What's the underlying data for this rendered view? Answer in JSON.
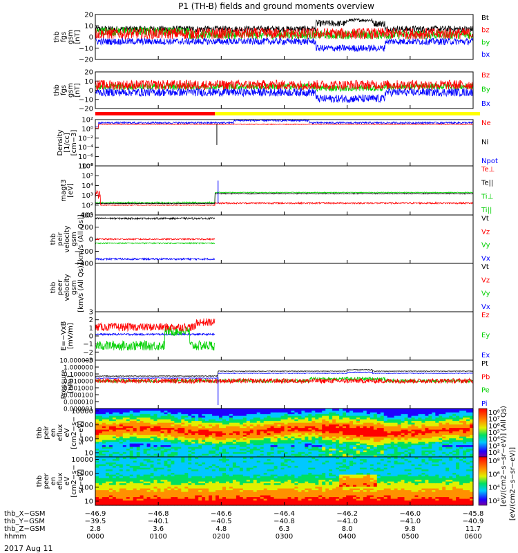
{
  "title": "P1 (TH-B) fields and ground moments overview",
  "date": "2017 Aug 11",
  "colors": {
    "black": "#000000",
    "red": "#ff0000",
    "green": "#00d000",
    "blue": "#0000ff",
    "yellow": "#ffff00"
  },
  "chart_data": [
    {
      "type": "line",
      "ylabel": [
        "thb",
        "fgs",
        "gsm",
        "[nT]"
      ],
      "ylim": [
        -20,
        20
      ],
      "ticks": [
        "20",
        "10",
        "0",
        "−10",
        "−20"
      ],
      "legend": [
        {
          "name": "Bt",
          "color": "black"
        },
        {
          "name": "bz",
          "color": "red"
        },
        {
          "name": "by",
          "color": "green"
        },
        {
          "name": "bx",
          "color": "blue"
        }
      ]
    },
    {
      "type": "line",
      "ylabel": [
        "thb",
        "fgs",
        "gsm",
        "[nT]"
      ],
      "ylim": [
        -25,
        20
      ],
      "ticks": [
        "20",
        "10",
        "0",
        "−10",
        "−20"
      ],
      "legend": [
        {
          "name": "Bz",
          "color": "red"
        },
        {
          "name": "By",
          "color": "green"
        },
        {
          "name": "Bx",
          "color": "blue"
        }
      ]
    },
    {
      "type": "line",
      "ylabel": [
        "Density",
        "[1/cc]",
        "[cm−3]"
      ],
      "ylim": [
        -8,
        2
      ],
      "log": true,
      "ticks": [
        "10²",
        "10⁰",
        "10⁻²",
        "10⁻⁴",
        "10⁻⁶",
        "10⁻⁸"
      ],
      "legend": [
        {
          "name": "Ne",
          "color": "red"
        },
        {
          "name": "Ni",
          "color": "black"
        },
        {
          "name": "Npot",
          "color": "blue"
        }
      ]
    },
    {
      "type": "line",
      "ylabel": [
        "magt3",
        "[eV]"
      ],
      "ylim": [
        0,
        6
      ],
      "log": true,
      "ticks": [
        "10⁶",
        "10⁵",
        "10⁴",
        "10³",
        "10²",
        "10¹"
      ],
      "legend": [
        {
          "name": "Te⊥",
          "color": "red"
        },
        {
          "name": "Te||",
          "color": "black"
        },
        {
          "name": "Ti⊥",
          "color": "green"
        },
        {
          "name": "Ti||",
          "color": "green"
        }
      ]
    },
    {
      "type": "line",
      "ylabel": [
        "thb",
        "peir",
        "velocity",
        "gsm",
        "[km/s (All Qs)]"
      ],
      "ylim": [
        -420,
        420
      ],
      "ticks": [
        "400",
        "200",
        "0",
        "−200",
        "−400"
      ],
      "legend": [
        {
          "name": "Vt",
          "color": "black"
        },
        {
          "name": "Vz",
          "color": "red"
        },
        {
          "name": "Vy",
          "color": "green"
        },
        {
          "name": "Vx",
          "color": "blue"
        }
      ]
    },
    {
      "type": "line",
      "ylabel": [
        "thb",
        "peer",
        "velocity",
        "gsm",
        "[km/s (All Qs)]"
      ],
      "ylim": [
        -420,
        420
      ],
      "ticks": [],
      "legend": [
        {
          "name": "Vt",
          "color": "black"
        },
        {
          "name": "Vz",
          "color": "red"
        },
        {
          "name": "Vy",
          "color": "green"
        },
        {
          "name": "Vx",
          "color": "blue"
        }
      ]
    },
    {
      "type": "line",
      "ylabel": [
        "E=−VxB",
        "[mV/m]"
      ],
      "ylim": [
        -3,
        3
      ],
      "ticks": [
        "3",
        "2",
        "1",
        "0",
        "−1",
        "−2",
        "−3"
      ],
      "legend": [
        {
          "name": "Ez",
          "color": "red"
        },
        {
          "name": "Ey",
          "color": "green"
        },
        {
          "name": "Ex",
          "color": "blue"
        }
      ]
    },
    {
      "type": "line",
      "ylabel": [
        "Pressure",
        "[nPa]"
      ],
      "ylim": [
        -6,
        1
      ],
      "log": true,
      "ticks": [
        "10.000000",
        "1.000000",
        "0.100000",
        "0.010000",
        "0.001000",
        "0.000100",
        "0.000010",
        "0.000001"
      ],
      "legend": [
        {
          "name": "Pt",
          "color": "black"
        },
        {
          "name": "Pb",
          "color": "red"
        },
        {
          "name": "Pe",
          "color": "green"
        },
        {
          "name": "Pi",
          "color": "blue"
        }
      ]
    },
    {
      "type": "heatmap",
      "ylabel": [
        "thb",
        "peir",
        "en",
        "eflux",
        "eV",
        "[cm2−s−",
        "sr−eV]"
      ],
      "ylim": [
        5,
        15000
      ],
      "log": true,
      "ticks": [
        "10000",
        "1000",
        "100",
        "10"
      ]
    },
    {
      "type": "heatmap",
      "ylabel": [
        "thb",
        "peer",
        "en",
        "eflux",
        "eV",
        "[cm2−s−",
        "sr−eV]"
      ],
      "ylim": [
        5,
        15000
      ],
      "log": true,
      "ticks": [
        "10000",
        "1000",
        "100",
        "10"
      ]
    }
  ],
  "colorbar1": {
    "ticks": [
      "10⁸",
      "10⁷",
      "10⁶",
      "10⁵",
      "10⁴",
      "10³",
      "10²"
    ]
  },
  "colorbar2": {
    "ticks": [
      "10⁸",
      "10⁶",
      "10⁴",
      "10²"
    ]
  },
  "colorbar_label": "[eV/(cm2−s−sr−eV)] (All Qs)",
  "colorbar_label2": "[eV/(cm2−s−sr−eV)]",
  "mode_bar": {
    "red_until_hour": 1.9
  },
  "xaxis": {
    "rows": [
      {
        "label": "thb_X−GSM",
        "values": [
          "−46.9",
          "−46.8",
          "−46.6",
          "−46.4",
          "−46.2",
          "−46.0",
          "−45.8"
        ]
      },
      {
        "label": "thb_Y−GSM",
        "values": [
          "−39.5",
          "−40.1",
          "−40.5",
          "−40.8",
          "−41.0",
          "−41.0",
          "−40.9"
        ]
      },
      {
        "label": "thb_Z−GSM",
        "values": [
          "2.8",
          "3.6",
          "4.8",
          "6.3",
          "8.0",
          "9.8",
          "11.7"
        ]
      },
      {
        "label": "hhmm",
        "values": [
          "0000",
          "0100",
          "0200",
          "0300",
          "0400",
          "0500",
          "0600"
        ]
      }
    ]
  }
}
